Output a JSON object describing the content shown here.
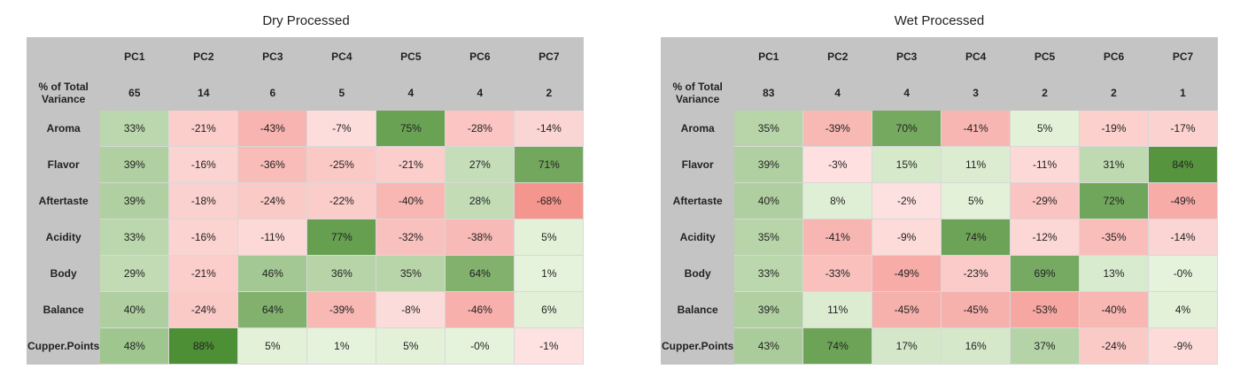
{
  "chart_data": [
    {
      "type": "heatmap",
      "title": "Dry Processed",
      "columns": [
        "PC1",
        "PC2",
        "PC3",
        "PC4",
        "PC5",
        "PC6",
        "PC7"
      ],
      "variance_label": "% of Total Variance",
      "variance": [
        "65",
        "14",
        "6",
        "5",
        "4",
        "4",
        "2"
      ],
      "rows": [
        "Aroma",
        "Flavor",
        "Aftertaste",
        "Acidity",
        "Body",
        "Balance",
        "Cupper.Points"
      ],
      "values": [
        [
          33,
          -21,
          -43,
          -7,
          75,
          -28,
          -14
        ],
        [
          39,
          -16,
          -36,
          -25,
          -21,
          27,
          71
        ],
        [
          39,
          -18,
          -24,
          -22,
          -40,
          28,
          -68
        ],
        [
          33,
          -16,
          -11,
          77,
          -32,
          -38,
          5
        ],
        [
          29,
          -21,
          46,
          36,
          35,
          64,
          1
        ],
        [
          40,
          -24,
          64,
          -39,
          -8,
          -46,
          6
        ],
        [
          48,
          88,
          5,
          1,
          5,
          0,
          -1
        ]
      ],
      "labels": [
        [
          "33%",
          "-21%",
          "-43%",
          "-7%",
          "75%",
          "-28%",
          "-14%"
        ],
        [
          "39%",
          "-16%",
          "-36%",
          "-25%",
          "-21%",
          "27%",
          "71%"
        ],
        [
          "39%",
          "-18%",
          "-24%",
          "-22%",
          "-40%",
          "28%",
          "-68%"
        ],
        [
          "33%",
          "-16%",
          "-11%",
          "77%",
          "-32%",
          "-38%",
          "5%"
        ],
        [
          "29%",
          "-21%",
          "46%",
          "36%",
          "35%",
          "64%",
          "1%"
        ],
        [
          "40%",
          "-24%",
          "64%",
          "-39%",
          "-8%",
          "-46%",
          "6%"
        ],
        [
          "48%",
          "88%",
          "5%",
          "1%",
          "5%",
          "-0%",
          "-1%"
        ]
      ]
    },
    {
      "type": "heatmap",
      "title": "Wet Processed",
      "columns": [
        "PC1",
        "PC2",
        "PC3",
        "PC4",
        "PC5",
        "PC6",
        "PC7"
      ],
      "variance_label": "% of Total Variance",
      "variance": [
        "83",
        "4",
        "4",
        "3",
        "2",
        "2",
        "1"
      ],
      "rows": [
        "Aroma",
        "Flavor",
        "Aftertaste",
        "Acidity",
        "Body",
        "Balance",
        "Cupper.Points"
      ],
      "values": [
        [
          35,
          -39,
          70,
          -41,
          5,
          -19,
          -17
        ],
        [
          39,
          -3,
          15,
          11,
          -11,
          31,
          84
        ],
        [
          40,
          8,
          -2,
          5,
          -29,
          72,
          -49
        ],
        [
          35,
          -41,
          -9,
          74,
          -12,
          -35,
          -14
        ],
        [
          33,
          -33,
          -49,
          -23,
          69,
          13,
          0
        ],
        [
          39,
          11,
          -45,
          -45,
          -53,
          -40,
          4
        ],
        [
          43,
          74,
          17,
          16,
          37,
          -24,
          -9
        ]
      ],
      "labels": [
        [
          "35%",
          "-39%",
          "70%",
          "-41%",
          "5%",
          "-19%",
          "-17%"
        ],
        [
          "39%",
          "-3%",
          "15%",
          "11%",
          "-11%",
          "31%",
          "84%"
        ],
        [
          "40%",
          "8%",
          "-2%",
          "5%",
          "-29%",
          "72%",
          "-49%"
        ],
        [
          "35%",
          "-41%",
          "-9%",
          "74%",
          "-12%",
          "-35%",
          "-14%"
        ],
        [
          "33%",
          "-33%",
          "-49%",
          "-23%",
          "69%",
          "13%",
          "-0%"
        ],
        [
          "39%",
          "11%",
          "-45%",
          "-45%",
          "-53%",
          "-40%",
          "4%"
        ],
        [
          "43%",
          "74%",
          "17%",
          "16%",
          "37%",
          "-24%",
          "-9%"
        ]
      ]
    }
  ],
  "colors": {
    "header_bg": "#c4c4c4",
    "positive_light": "#e6f3dc",
    "positive_dark": "#4d8f34",
    "negative_light": "#fde3e2",
    "negative_dark": "#f17b73"
  }
}
